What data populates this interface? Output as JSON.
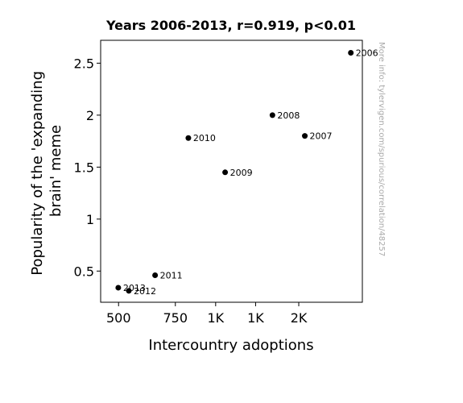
{
  "chart_data": {
    "type": "scatter",
    "title": "Years 2006-2013, r=0.919, p<0.01",
    "xlabel": "Intercountry adoptions",
    "ylabel_lines": [
      "Popularity of the 'expanding",
      "brain' meme"
    ],
    "xlim": [
      440,
      2850
    ],
    "ylim": [
      0.2,
      2.72
    ],
    "x_ticks": [
      {
        "value": 500,
        "label": "500"
      },
      {
        "value": 750,
        "label": "750"
      },
      {
        "value": 1000,
        "label": "1K"
      },
      {
        "value": 1330,
        "label": "1K"
      },
      {
        "value": 1810,
        "label": "2K"
      }
    ],
    "y_ticks": [
      {
        "value": 0.5,
        "label": "0.5"
      },
      {
        "value": 1,
        "label": "1"
      },
      {
        "value": 1.5,
        "label": "1.5"
      },
      {
        "value": 2,
        "label": "2"
      },
      {
        "value": 2.5,
        "label": "2.5"
      }
    ],
    "points": [
      {
        "label": "2006",
        "x": 2625,
        "y": 2.6
      },
      {
        "label": "2007",
        "x": 1890,
        "y": 1.8
      },
      {
        "label": "2008",
        "x": 1500,
        "y": 2.0
      },
      {
        "label": "2009",
        "x": 1070,
        "y": 1.45
      },
      {
        "label": "2010",
        "x": 823,
        "y": 1.78
      },
      {
        "label": "2011",
        "x": 649,
        "y": 0.46
      },
      {
        "label": "2012",
        "x": 538,
        "y": 0.31
      },
      {
        "label": "2013",
        "x": 499,
        "y": 0.34
      }
    ],
    "grid": false,
    "marker_color": "#000000"
  },
  "watermark": "More info: tylervigen.com/spurious/correlation/48257"
}
